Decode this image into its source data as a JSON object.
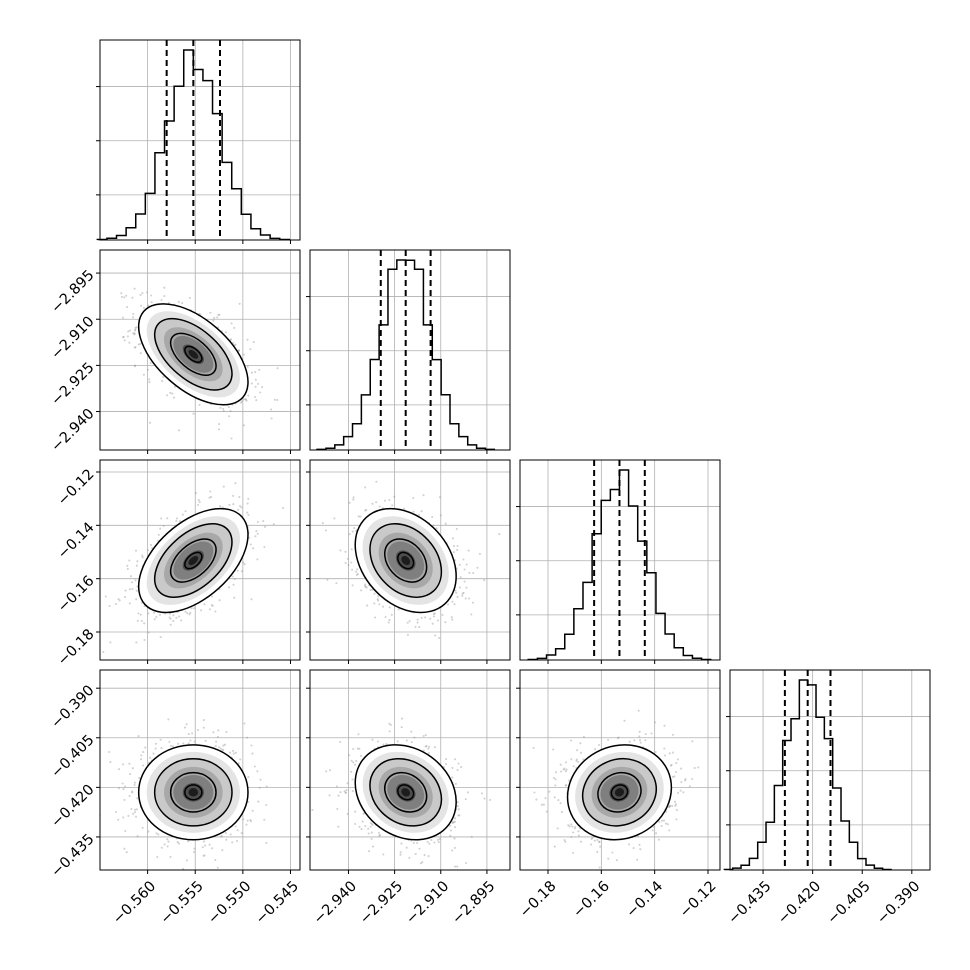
{
  "chart_data": {
    "type": "corner",
    "parameters": 4,
    "colors": {
      "line": "#000000",
      "grid": "#b0b0b0",
      "scatter": "#9a9a9a",
      "background": "#ffffff"
    },
    "grid": true,
    "axes": [
      {
        "ticks": [
          -0.56,
          -0.555,
          -0.55,
          -0.545
        ],
        "tick_labels": [
          "−0.560",
          "−0.555",
          "−0.550",
          "−0.545"
        ],
        "range": [
          -0.565,
          -0.544
        ],
        "mean": -0.5552,
        "sigma": 0.0028,
        "quantiles": [
          -0.558,
          -0.5552,
          -0.5524
        ]
      },
      {
        "ticks": [
          -2.94,
          -2.925,
          -2.91,
          -2.895
        ],
        "tick_labels": [
          "−2.940",
          "−2.925",
          "−2.910",
          "−2.895"
        ],
        "range": [
          -2.9525,
          -2.8875
        ],
        "mean": -2.9214,
        "sigma": 0.008,
        "quantiles": [
          -2.9295,
          -2.9214,
          -2.9133
        ]
      },
      {
        "ticks": [
          -0.18,
          -0.16,
          -0.14,
          -0.12
        ],
        "tick_labels": [
          "−0.18",
          "−0.16",
          "−0.14",
          "−0.12"
        ],
        "range": [
          -0.1905,
          -0.1155
        ],
        "mean": -0.1532,
        "sigma": 0.0095,
        "quantiles": [
          -0.1627,
          -0.1532,
          -0.1437
        ]
      },
      {
        "ticks": [
          -0.435,
          -0.42,
          -0.405,
          -0.39
        ],
        "tick_labels": [
          "−0.435",
          "−0.420",
          "−0.405",
          "−0.390"
        ],
        "range": [
          -0.445,
          -0.3845
        ],
        "mean": -0.4215,
        "sigma": 0.007,
        "quantiles": [
          -0.4284,
          -0.4215,
          -0.4146
        ]
      }
    ],
    "correlations": [
      [
        1.0,
        -0.55,
        0.5,
        0.0
      ],
      [
        -0.55,
        1.0,
        -0.3,
        -0.2
      ],
      [
        0.5,
        -0.3,
        1.0,
        0.1
      ],
      [
        0.0,
        -0.2,
        0.1,
        1.0
      ]
    ],
    "histogram_bins": 20,
    "contour_levels_sigma": [
      0.5,
      1.0,
      1.5,
      2.0
    ]
  }
}
